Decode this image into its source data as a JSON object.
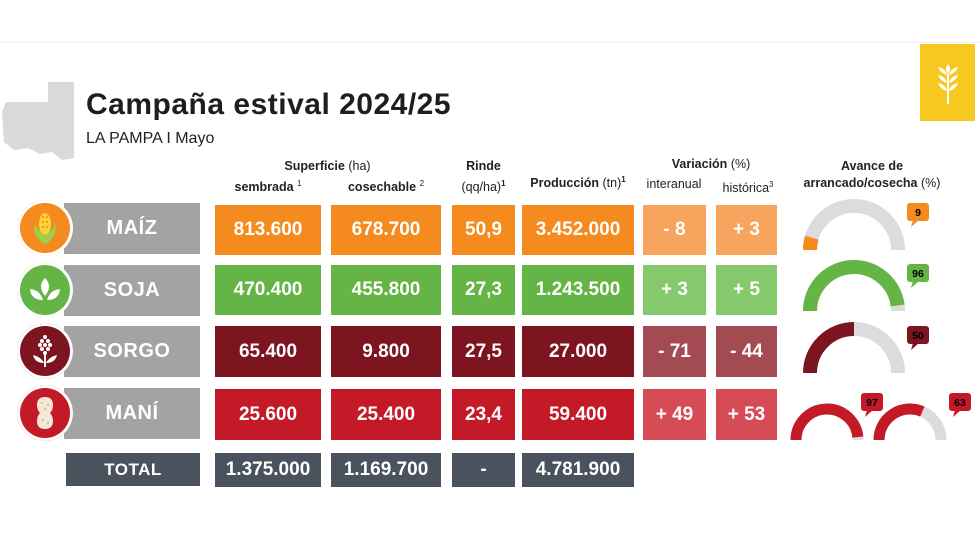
{
  "header": {
    "title": "Campaña estival 2024/25",
    "subtitle": "LA PAMPA I Mayo"
  },
  "columns": {
    "superficie": "Superficie",
    "superficie_unit": "(ha)",
    "sembrada": "sembrada",
    "sembrada_sup": "1",
    "cosechable": "cosechable",
    "cosechable_sup": "2",
    "rinde": "Rinde",
    "rinde_unit": "(qq/ha)",
    "rinde_sup": "1",
    "produccion": "Producción",
    "produccion_unit": "(tn)",
    "produccion_sup": "1",
    "variacion": "Variación",
    "variacion_unit": "(%)",
    "interanual": "interanual",
    "historica": "histórica",
    "historica_sup": "3",
    "avance_line1": "Avance de",
    "avance_line2": "arrancado/cosecha",
    "avance_unit": "(%)"
  },
  "colors": {
    "maiz": "#f58a1f",
    "maiz_var": "#f7a55e",
    "soja": "#65b446",
    "soja_var": "#86c86c",
    "sorgo": "#7d1520",
    "sorgo_var": "#a34a52",
    "mani": "#c41a28",
    "mani_var": "#d54c57",
    "label_gray": "#a3a3a3",
    "total_dark": "#4a535d",
    "wheat_yellow": "#f7c81f"
  },
  "chart_data": {
    "type": "table",
    "title": "Campaña estival 2024/25",
    "subtitle": "LA PAMPA I Mayo",
    "crops": [
      {
        "key": "maiz",
        "name": "MAÍZ",
        "sembrada": "813.600",
        "cosechable": "678.700",
        "rinde": "50,9",
        "produccion": "3.452.000",
        "interanual": "- 8",
        "historica": "+ 3",
        "avance": [
          9
        ]
      },
      {
        "key": "soja",
        "name": "SOJA",
        "sembrada": "470.400",
        "cosechable": "455.800",
        "rinde": "27,3",
        "produccion": "1.243.500",
        "interanual": "+ 3",
        "historica": "+ 5",
        "avance": [
          96
        ]
      },
      {
        "key": "sorgo",
        "name": "SORGO",
        "sembrada": "65.400",
        "cosechable": "9.800",
        "rinde": "27,5",
        "produccion": "27.000",
        "interanual": "- 71",
        "historica": "- 44",
        "avance": [
          50
        ]
      },
      {
        "key": "mani",
        "name": "MANÍ",
        "sembrada": "25.600",
        "cosechable": "25.400",
        "rinde": "23,4",
        "produccion": "59.400",
        "interanual": "+ 49",
        "historica": "+ 53",
        "avance": [
          97,
          63
        ]
      }
    ],
    "total": {
      "label": "TOTAL",
      "sembrada": "1.375.000",
      "cosechable": "1.169.700",
      "rinde": "-",
      "produccion": "4.781.900"
    }
  }
}
